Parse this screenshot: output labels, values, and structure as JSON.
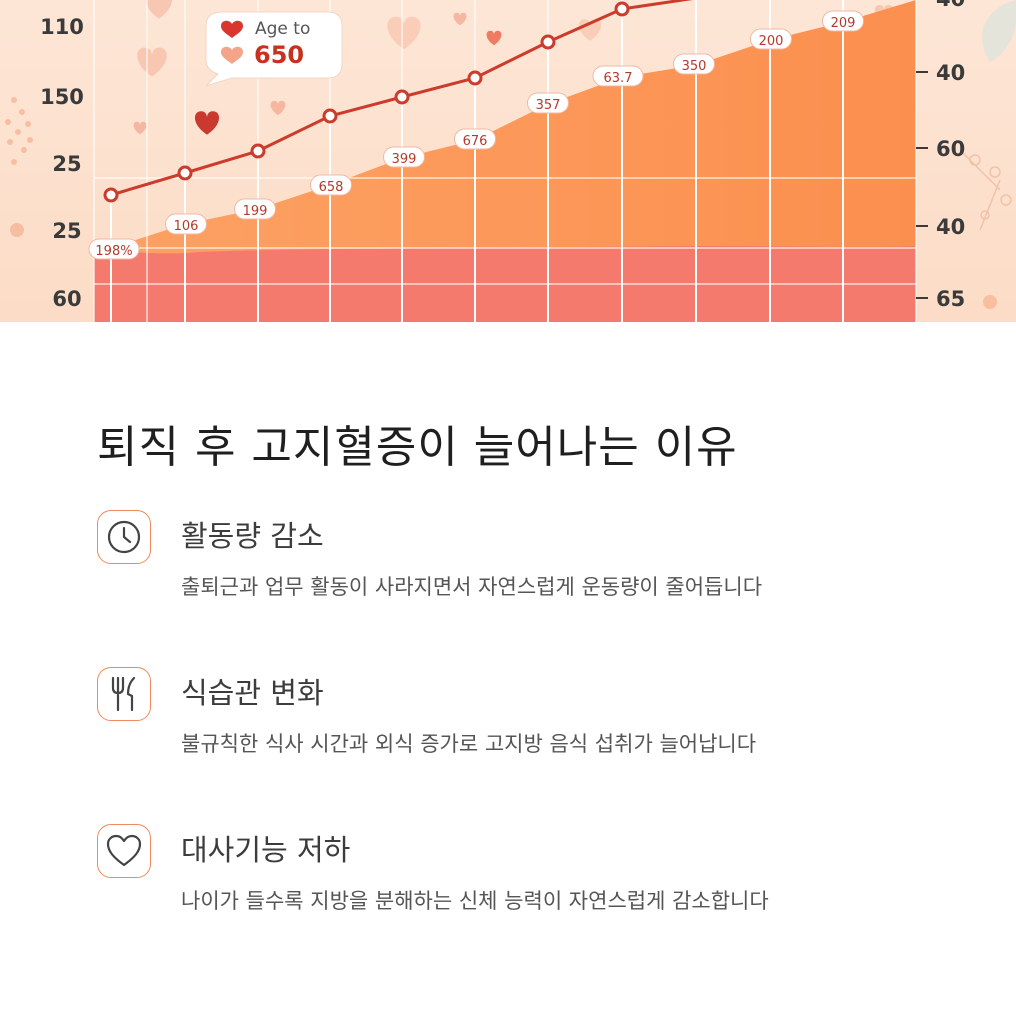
{
  "hero": {
    "badge": {
      "line1": "Age to",
      "value": "650"
    },
    "left_axis_labels": [
      "110",
      "150",
      "25",
      "25",
      "60"
    ],
    "right_axis_labels": [
      "40",
      "60",
      "40",
      "65"
    ],
    "right_axis_partial_label": "40",
    "colors": {
      "line": "#cc3b2b",
      "area_orange": "#fb9a5c",
      "area_red": "#f47c6e",
      "background": "#fde4d2"
    }
  },
  "chart_data": {
    "type": "line",
    "series": [
      {
        "values": [
          null,
          null,
          null,
          null,
          null,
          null,
          null,
          null,
          null,
          null,
          null
        ]
      }
    ],
    "line_point_labels": [
      "198%",
      "106",
      "199",
      "658",
      "399",
      "676",
      "357",
      "63.7",
      "350",
      "200",
      "209"
    ],
    "area_labels": [
      "198%",
      "106",
      "199",
      "658",
      "399",
      "676",
      "357",
      "63.7",
      "350",
      "200",
      "209"
    ]
  },
  "section": {
    "title": "퇴직 후 고지혈증이 늘어나는 이유",
    "reasons": [
      {
        "icon": "clock-icon",
        "title": "활동량 감소",
        "description": "출퇴근과 업무 활동이 사라지면서 자연스럽게 운동량이 줄어듭니다"
      },
      {
        "icon": "fork-knife-icon",
        "title": "식습관 변화",
        "description": "불규칙한 식사 시간과 외식 증가로 고지방 음식 섭취가 늘어납니다"
      },
      {
        "icon": "heart-icon",
        "title": "대사기능 저하",
        "description": "나이가 들수록 지방을 분해하는 신체 능력이 자연스럽게 감소합니다"
      }
    ],
    "accent_color": "#ee8a5e"
  }
}
